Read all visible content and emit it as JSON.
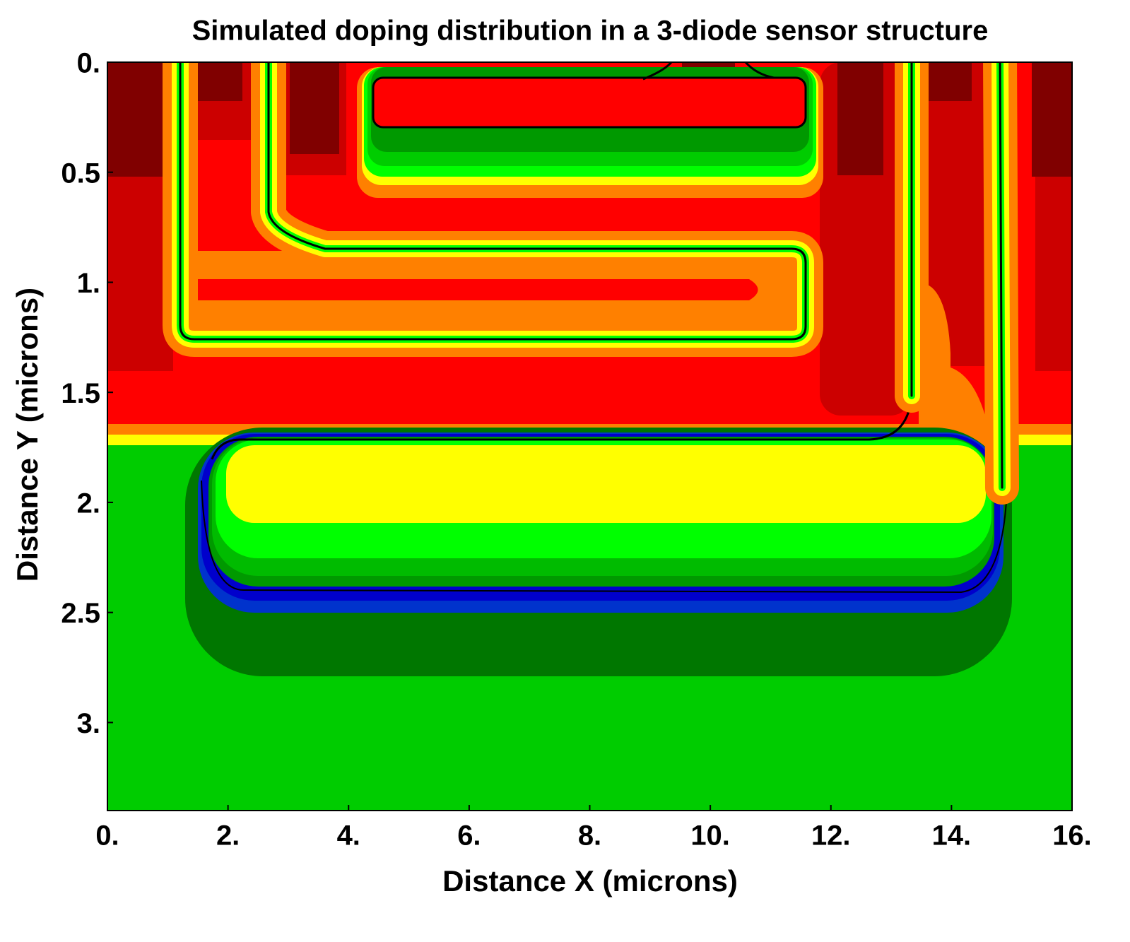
{
  "chart_data": {
    "type": "contour",
    "title": "Simulated doping distribution in a 3-diode sensor structure",
    "xlabel": "Distance X (microns)",
    "ylabel": "Distance Y (microns)",
    "xlim": [
      0,
      16
    ],
    "ylim": [
      0,
      3.4
    ],
    "y_inverted": true,
    "xticks": [
      {
        "value": 0,
        "label": "0."
      },
      {
        "value": 2,
        "label": "2."
      },
      {
        "value": 4,
        "label": "4."
      },
      {
        "value": 6,
        "label": "6."
      },
      {
        "value": 8,
        "label": "8."
      },
      {
        "value": 10,
        "label": "10."
      },
      {
        "value": 12,
        "label": "12."
      },
      {
        "value": 14,
        "label": "14."
      },
      {
        "value": 16,
        "label": "16."
      }
    ],
    "yticks": [
      {
        "value": 0,
        "label": "0."
      },
      0.5,
      {
        "value": 1,
        "label": "1."
      },
      1.5,
      {
        "value": 2,
        "label": "2."
      },
      2.5,
      {
        "value": 3,
        "label": "3."
      }
    ]
  }
}
